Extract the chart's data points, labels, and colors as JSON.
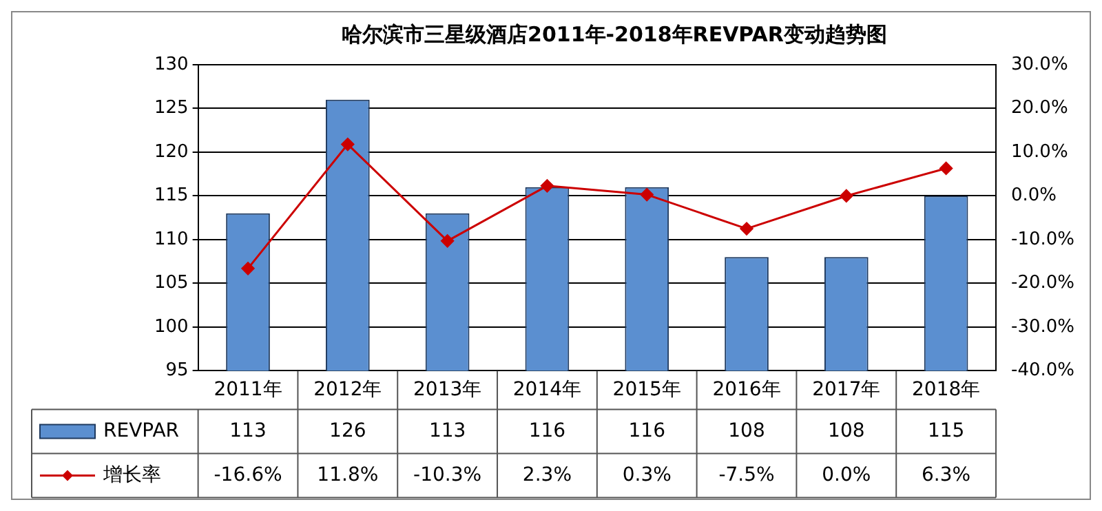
{
  "chart_data": {
    "type": "bar",
    "title": "哈尔滨市三星级酒店2011年-2018年REVPAR变动趋势图",
    "categories": [
      "2011年",
      "2012年",
      "2013年",
      "2014年",
      "2015年",
      "2016年",
      "2017年",
      "2018年"
    ],
    "series": [
      {
        "name": "REVPAR",
        "color": "#5b8fd0",
        "values": [
          113,
          126,
          113,
          116,
          116,
          108,
          108,
          115
        ],
        "value_labels": [
          "113",
          "126",
          "113",
          "116",
          "116",
          "108",
          "108",
          "115"
        ]
      },
      {
        "name": "增长率",
        "type": "line",
        "axis": "y2",
        "color": "#cc0000",
        "marker": "diamond",
        "values": [
          -16.6,
          11.8,
          -10.3,
          2.3,
          0.3,
          -7.5,
          0.0,
          6.3
        ],
        "value_labels": [
          "-16.6%",
          "11.8%",
          "-10.3%",
          "2.3%",
          "0.3%",
          "-7.5%",
          "0.0%",
          "6.3%"
        ]
      }
    ],
    "ylim": [
      95,
      130
    ],
    "yticks": [
      95,
      100,
      105,
      110,
      115,
      120,
      125,
      130
    ],
    "y2lim": [
      -40,
      30
    ],
    "y2ticks": [
      {
        "value": -40,
        "label": "-40.0%"
      },
      {
        "value": -30,
        "label": "-30.0%"
      },
      {
        "value": -20,
        "label": "-20.0%"
      },
      {
        "value": -10,
        "label": "-10.0%"
      },
      {
        "value": 0,
        "label": "0.0%"
      },
      {
        "value": 10,
        "label": "10.0%"
      },
      {
        "value": 20,
        "label": "20.0%"
      },
      {
        "value": 30,
        "label": "30.0%"
      }
    ],
    "grid": "y",
    "legend": "bottom"
  }
}
